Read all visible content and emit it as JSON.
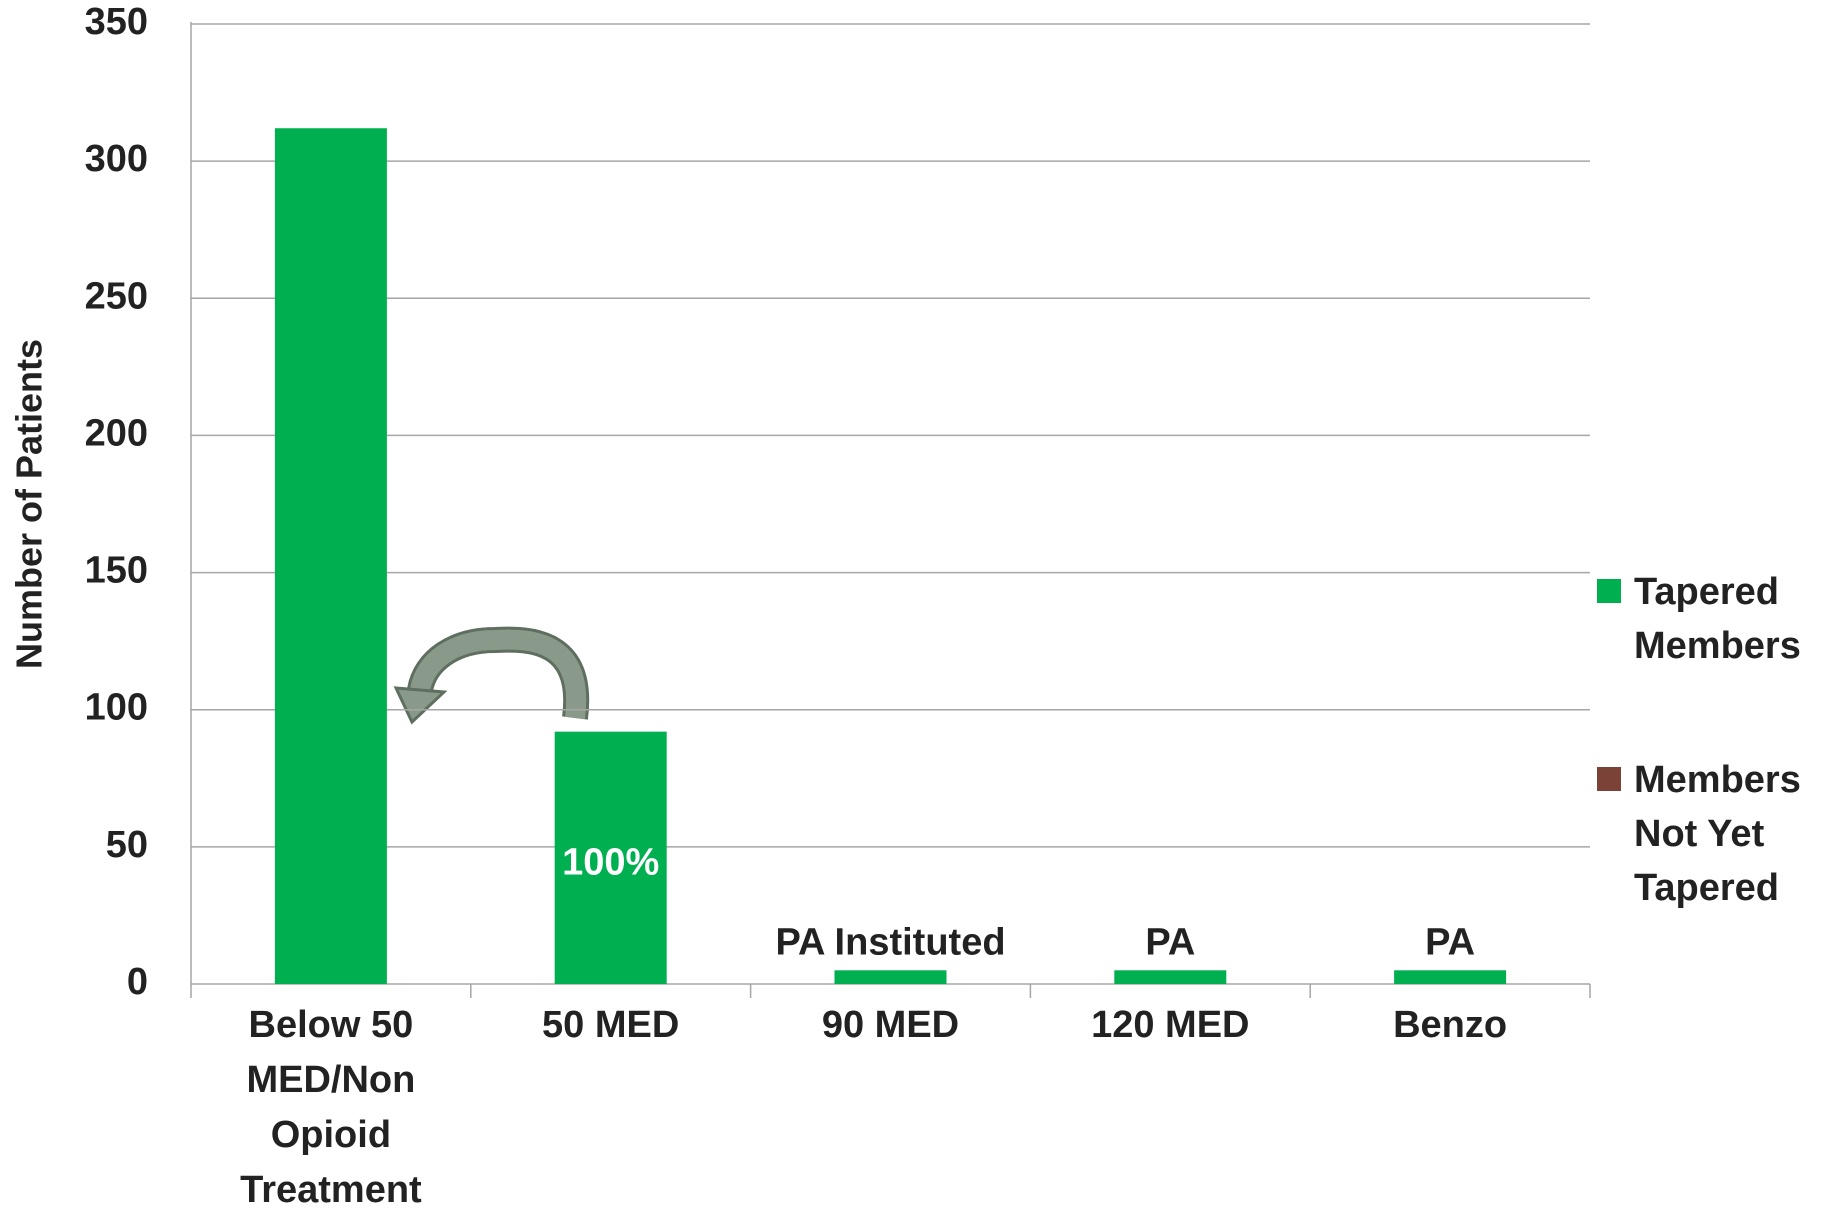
{
  "chart_data": {
    "type": "bar",
    "stacked": true,
    "y_label": "Number of Patients",
    "categories": [
      "Below 50 MED/Non Opioid Treatment",
      "50 MED",
      "90 MED",
      "120 MED",
      "Benzo"
    ],
    "series": [
      {
        "name": "Tapered Members",
        "color": "#00b050",
        "values": [
          312,
          92,
          5,
          5,
          5
        ]
      },
      {
        "name": "Members Not Yet Tapered",
        "color": "#7b4338",
        "values": [
          0,
          0,
          0,
          0,
          0
        ]
      }
    ],
    "annotations": [
      "100%",
      "PA Instituted",
      "PA",
      "PA"
    ],
    "ylim": [
      0,
      350
    ],
    "yticks": [
      0,
      50,
      100,
      150,
      200,
      250,
      300,
      350
    ],
    "grid": true,
    "legend": "right"
  }
}
